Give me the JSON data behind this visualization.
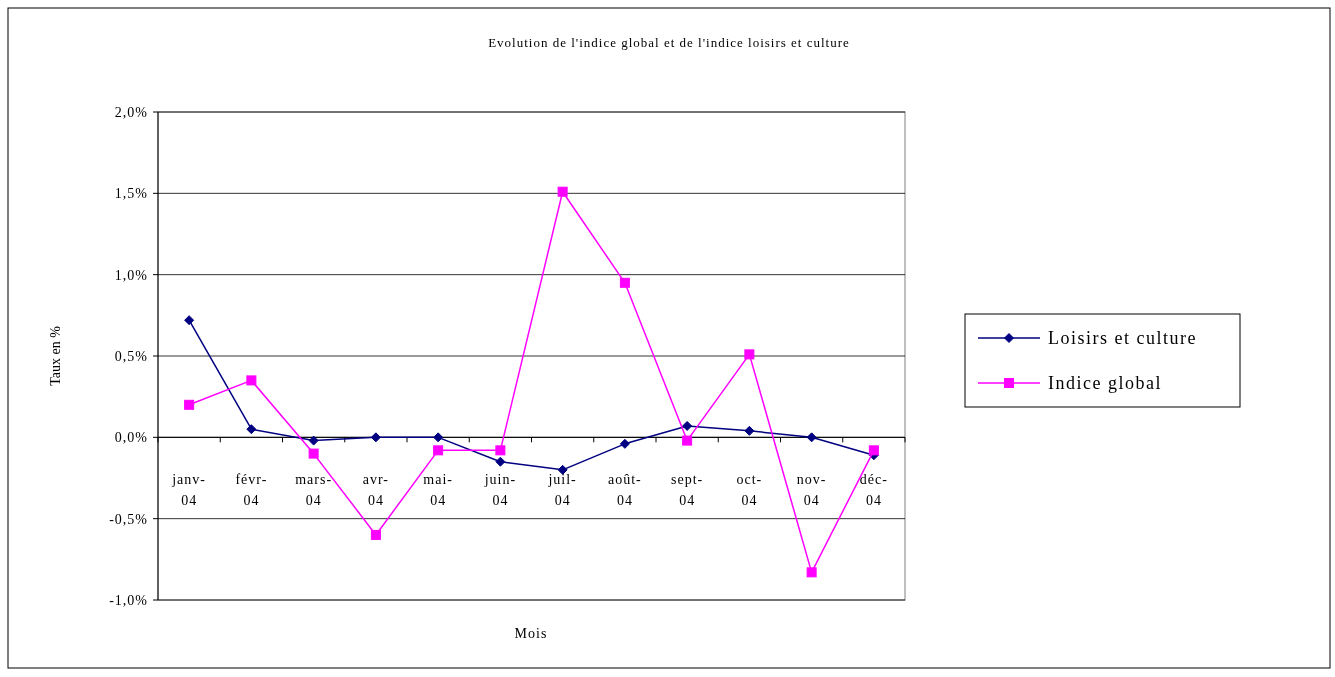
{
  "chart_data": {
    "type": "line",
    "title": "Evolution de l'indice global et de l'indice loisirs et culture",
    "xlabel": "Mois",
    "ylabel": "Taux en %",
    "categories": [
      "janv-04",
      "févr-04",
      "mars-04",
      "avr-04",
      "mai-04",
      "juin-04",
      "juil-04",
      "août-04",
      "sept-04",
      "oct-04",
      "nov-04",
      "déc-04"
    ],
    "series": [
      {
        "name": "Loisirs et culture",
        "color": "#000080",
        "marker": "diamond",
        "values": [
          0.72,
          0.05,
          -0.02,
          0,
          0,
          -0.15,
          -0.2,
          -0.04,
          0.07,
          0.04,
          0,
          -0.11
        ]
      },
      {
        "name": "Indice global",
        "color": "#ff00ff",
        "marker": "square",
        "values": [
          0.2,
          0.35,
          -0.1,
          -0.6,
          -0.08,
          -0.08,
          1.51,
          0.95,
          -0.02,
          0.51,
          -0.83,
          -0.08
        ]
      }
    ],
    "ylim": [
      -1,
      2
    ],
    "yticks": [
      {
        "value": -1,
        "label": "-1,0%"
      },
      {
        "value": -0.5,
        "label": "-0,5%"
      },
      {
        "value": 0,
        "label": "0,0%"
      },
      {
        "value": 0.5,
        "label": "0,5%"
      },
      {
        "value": 1,
        "label": "1,0%"
      },
      {
        "value": 1.5,
        "label": "1,5%"
      },
      {
        "value": 2,
        "label": "2,0%"
      }
    ],
    "grid": "y",
    "legend": "right",
    "line_style": "solid"
  }
}
